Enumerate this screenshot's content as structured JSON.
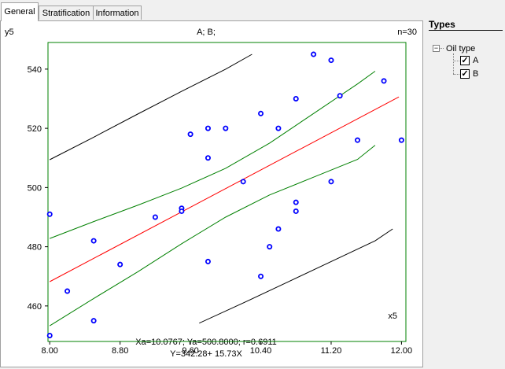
{
  "tabs": [
    {
      "label": "General",
      "active": true
    },
    {
      "label": "Stratification",
      "active": false
    },
    {
      "label": "Information",
      "active": false
    }
  ],
  "sidebar": {
    "title": "Types",
    "tree": {
      "root_label": "Oil type",
      "expander": "−",
      "items": [
        {
          "label": "A",
          "checked": true
        },
        {
          "label": "B",
          "checked": true
        }
      ]
    }
  },
  "chart_header": {
    "y_var": "y5",
    "selection": "A; B;",
    "n": "n=30"
  },
  "footer": {
    "stats_line": "Xa=10.0767; Ya=500.8000; r=0.6911",
    "equation_line": "Y=342.28+ 15.73X"
  },
  "colors": {
    "frame": "#008000",
    "points": "#0000ff",
    "regression": "#ff0000",
    "confidence": "#008000",
    "prediction": "#000000"
  },
  "chart_data": {
    "type": "scatter",
    "xlabel": "x5",
    "ylabel": "y5",
    "xlim": [
      7.98,
      12.05
    ],
    "ylim": [
      448,
      549
    ],
    "xticks": [
      "8.00",
      "8.80",
      "9.60",
      "10.40",
      "11.20",
      "12.00"
    ],
    "yticks": [
      "460",
      "480",
      "500",
      "520",
      "540"
    ],
    "x_tick_values": [
      8.0,
      8.8,
      9.6,
      10.4,
      11.2,
      12.0
    ],
    "y_tick_values": [
      460,
      480,
      500,
      520,
      540
    ],
    "points": [
      [
        8.0,
        450
      ],
      [
        8.0,
        491
      ],
      [
        8.2,
        465
      ],
      [
        8.5,
        455
      ],
      [
        8.5,
        482
      ],
      [
        8.8,
        474
      ],
      [
        9.2,
        490
      ],
      [
        9.5,
        493
      ],
      [
        9.5,
        492
      ],
      [
        9.6,
        518
      ],
      [
        9.8,
        520
      ],
      [
        9.8,
        510
      ],
      [
        9.8,
        475
      ],
      [
        10.0,
        520
      ],
      [
        10.2,
        502
      ],
      [
        10.4,
        525
      ],
      [
        10.4,
        470
      ],
      [
        10.5,
        480
      ],
      [
        10.6,
        520
      ],
      [
        10.6,
        486
      ],
      [
        10.8,
        530
      ],
      [
        10.8,
        495
      ],
      [
        10.8,
        492
      ],
      [
        11.0,
        545
      ],
      [
        11.2,
        543
      ],
      [
        11.2,
        502
      ],
      [
        11.3,
        531
      ],
      [
        11.5,
        516
      ],
      [
        11.8,
        536
      ],
      [
        12.0,
        516
      ]
    ],
    "regression_line": [
      [
        8.0,
        468.2
      ],
      [
        11.97,
        530.6
      ]
    ],
    "confidence_upper": [
      [
        8.0,
        482.8
      ],
      [
        8.5,
        488.5
      ],
      [
        9.0,
        494.0
      ],
      [
        9.5,
        499.8
      ],
      [
        10.0,
        506.5
      ],
      [
        10.5,
        515.0
      ],
      [
        11.0,
        525.0
      ],
      [
        11.5,
        535.0
      ],
      [
        11.7,
        539.3
      ]
    ],
    "confidence_lower": [
      [
        8.0,
        453.3
      ],
      [
        8.5,
        462.5
      ],
      [
        9.0,
        471.5
      ],
      [
        9.5,
        481.0
      ],
      [
        10.0,
        490.0
      ],
      [
        10.5,
        497.5
      ],
      [
        11.0,
        503.5
      ],
      [
        11.5,
        509.5
      ],
      [
        11.7,
        514.3
      ]
    ],
    "prediction_upper": [
      [
        8.0,
        509.4
      ],
      [
        8.5,
        517.0
      ],
      [
        9.0,
        524.8
      ],
      [
        9.5,
        532.5
      ],
      [
        10.0,
        540.0
      ],
      [
        10.3,
        545.0
      ]
    ],
    "prediction_lower": [
      [
        9.7,
        454.2
      ],
      [
        10.2,
        461.0
      ],
      [
        10.7,
        468.0
      ],
      [
        11.2,
        475.0
      ],
      [
        11.7,
        482.0
      ],
      [
        11.9,
        486.0
      ]
    ]
  }
}
